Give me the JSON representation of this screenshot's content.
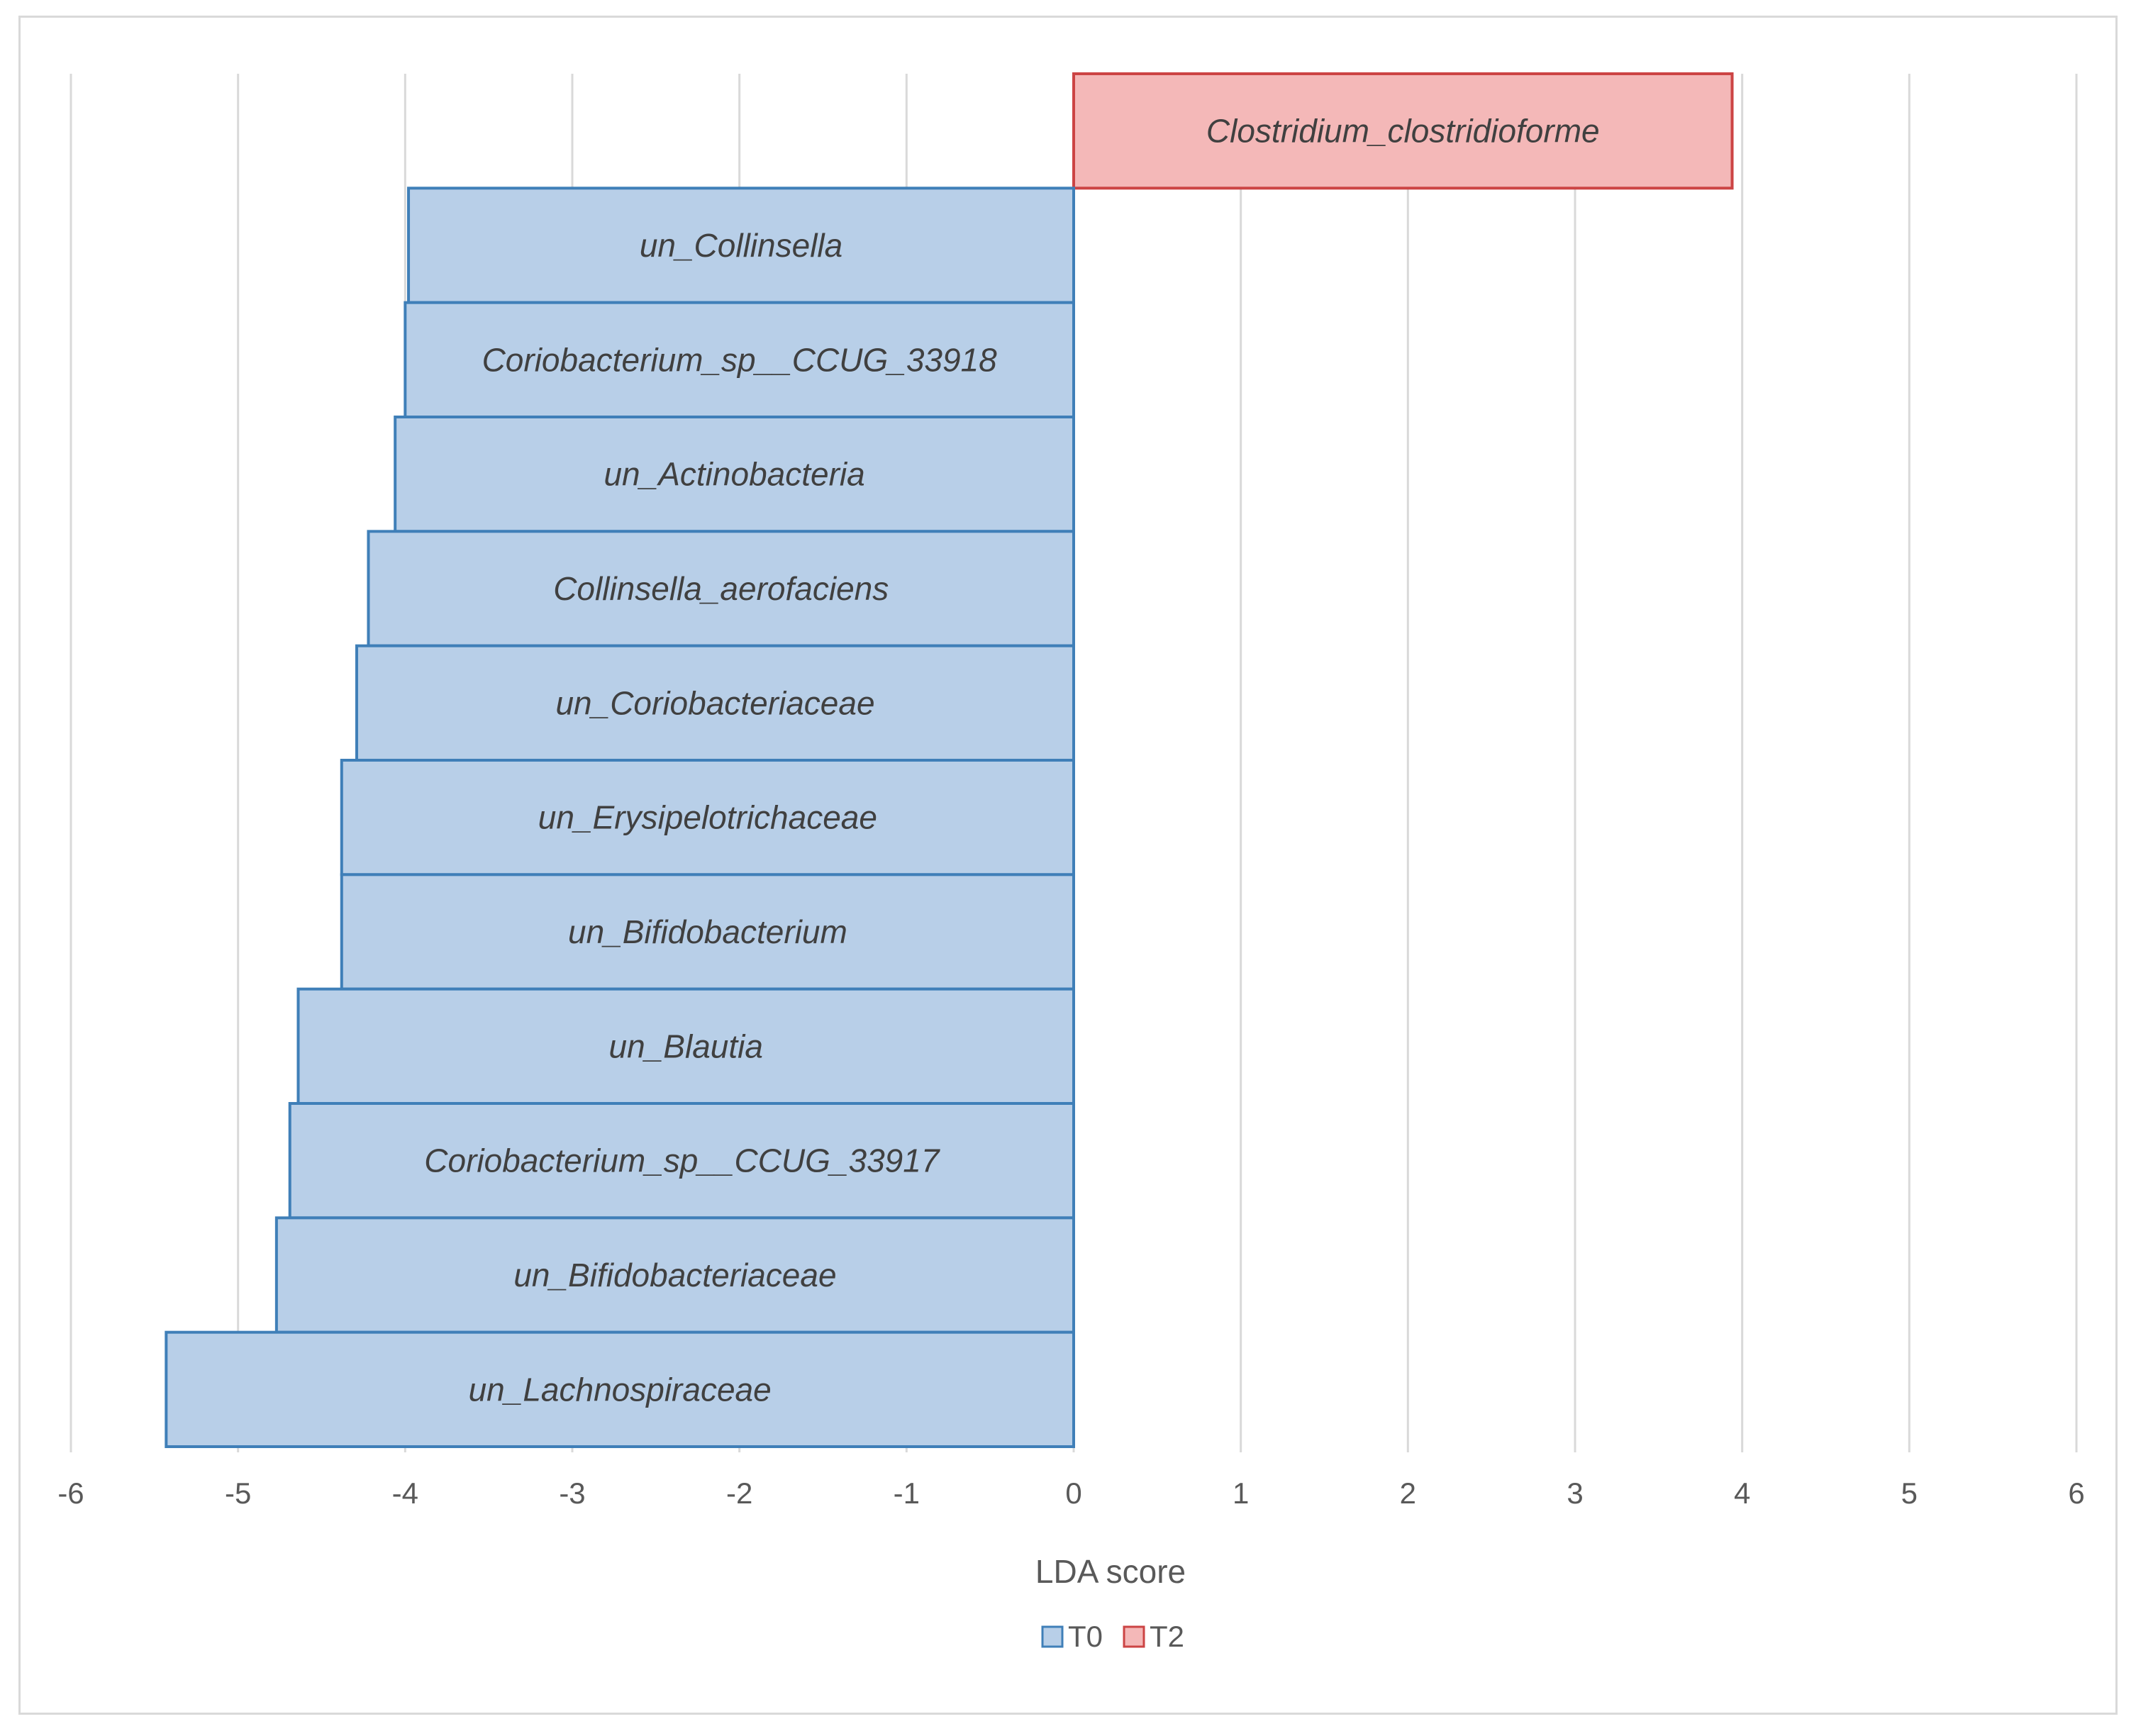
{
  "chart_data": {
    "type": "bar",
    "orientation": "horizontal",
    "categories": [
      "Clostridium_clostridioforme",
      "un_Collinsella",
      "Coriobacterium_sp__CCUG_33918",
      "un_Actinobacteria",
      "Collinsella_aerofaciens",
      "un_Coriobacteriaceae",
      "un_Erysipelotrichaceae",
      "un_Bifidobacterium",
      "un_Blautia",
      "Coriobacterium_sp__CCUG_33917",
      "un_Bifidobacteriaceae",
      "un_Lachnospiraceae"
    ],
    "values": [
      3.94,
      -3.98,
      -4.0,
      -4.06,
      -4.22,
      -4.29,
      -4.38,
      -4.38,
      -4.64,
      -4.69,
      -4.77,
      -5.43
    ],
    "groups": [
      "T2",
      "T0",
      "T0",
      "T0",
      "T0",
      "T0",
      "T0",
      "T0",
      "T0",
      "T0",
      "T0",
      "T0"
    ],
    "xlabel": "LDA score",
    "xlim": [
      -6,
      6
    ],
    "xticks": [
      "-6",
      "-5",
      "-4",
      "-3",
      "-2",
      "-1",
      "0",
      "1",
      "2",
      "3",
      "4",
      "5",
      "6"
    ],
    "grid": "vertical",
    "legend_position": "bottom",
    "legend": [
      {
        "name": "T0",
        "fill": "#b8cfe8",
        "stroke": "#3f7fb8"
      },
      {
        "name": "T2",
        "fill": "#f4b8b8",
        "stroke": "#cc4444"
      }
    ]
  }
}
